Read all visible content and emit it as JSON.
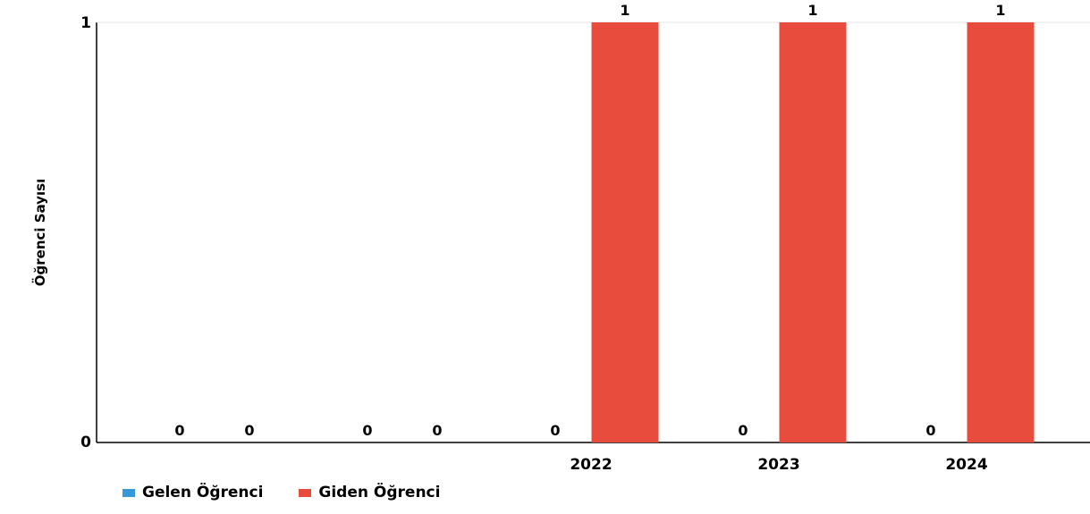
{
  "chart_data": {
    "type": "bar",
    "title": "",
    "xlabel": "",
    "ylabel": "Öğrenci Sayısı",
    "ylim": [
      0,
      1
    ],
    "y_ticks": [
      "0",
      "1"
    ],
    "grid": false,
    "legend_position": "bottom-left",
    "categories": [
      "",
      "",
      "2022",
      "2023",
      "2024",
      "",
      ""
    ],
    "series": [
      {
        "name": "Gelen Öğrenci",
        "color": "#3498db",
        "values": [
          0,
          0,
          0,
          0,
          0,
          0,
          0
        ]
      },
      {
        "name": "Giden Öğrenci",
        "color": "#e74c3c",
        "values": [
          0,
          0,
          1,
          1,
          1,
          0,
          0
        ]
      }
    ]
  }
}
